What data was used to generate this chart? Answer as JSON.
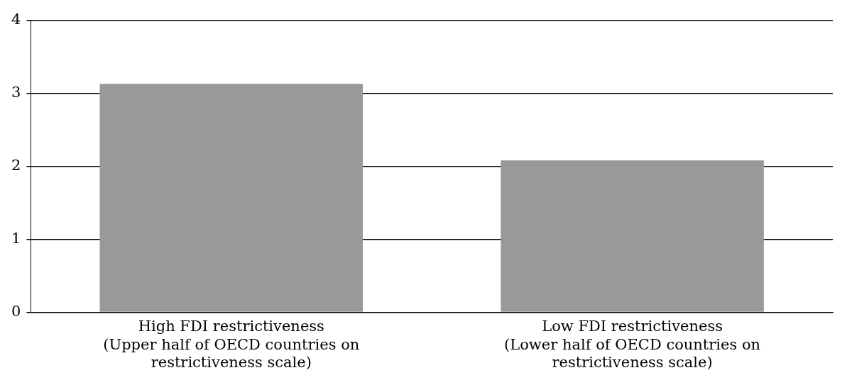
{
  "chart_data": {
    "type": "bar",
    "categories": [
      "High FDI restrictiveness\n(Upper half of OECD countries on\nrestrictiveness scale)",
      "Low FDI restrictiveness\n(Lower half of OECD countries on\nrestrictiveness scale)"
    ],
    "values": [
      3.13,
      2.08
    ],
    "color": "#999999",
    "ylim": [
      0,
      4
    ],
    "yticks": [
      0,
      1,
      2,
      3,
      4
    ],
    "grid": "y",
    "legend": false
  }
}
